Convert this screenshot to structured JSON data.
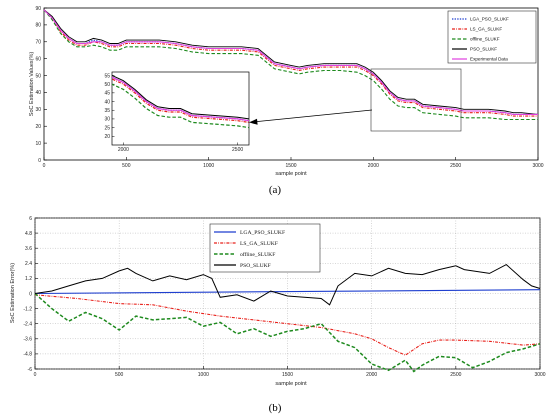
{
  "panel_labels": {
    "a": "(a)",
    "b": "(b)"
  },
  "chart_data": [
    {
      "type": "line",
      "xlabel": "sample point",
      "ylabel": "SoC Estimation Values(%)",
      "xlim": [
        0,
        3000
      ],
      "ylim": [
        0,
        90
      ],
      "xticks": [
        0,
        500,
        1000,
        1500,
        2000,
        2500,
        3000
      ],
      "yticks": [
        0,
        10,
        20,
        30,
        40,
        50,
        60,
        70,
        80,
        90
      ],
      "grid": false,
      "legend_position": "top-right",
      "x": [
        0,
        50,
        100,
        150,
        200,
        250,
        300,
        350,
        400,
        450,
        500,
        550,
        600,
        700,
        800,
        900,
        1000,
        1100,
        1200,
        1300,
        1400,
        1500,
        1550,
        1600,
        1700,
        1800,
        1900,
        1950,
        2000,
        2050,
        2100,
        2150,
        2200,
        2250,
        2300,
        2400,
        2500,
        2550,
        2600,
        2700,
        2800,
        2850,
        2900,
        3000
      ],
      "series": [
        {
          "name": "LGA_PSO_SLUKF",
          "color": "#1f3fcf",
          "dash": "1.4,1.2",
          "values": [
            89,
            84,
            77,
            72,
            69,
            69,
            71,
            70,
            68,
            68,
            70,
            70,
            70,
            70,
            69,
            67,
            66,
            66,
            66,
            65,
            57,
            55,
            54,
            55,
            56,
            56,
            56,
            54,
            51,
            46,
            40,
            36,
            35,
            35,
            32,
            31,
            30,
            29,
            29,
            29,
            28,
            27,
            27,
            27
          ]
        },
        {
          "name": "LS_GA_SLUKF",
          "color": "#e8201a",
          "dash": "3,1.2,0.8,1.2",
          "values": [
            89,
            84,
            76,
            71,
            68,
            68,
            70,
            69,
            67,
            67,
            69,
            69,
            69,
            69,
            68,
            66,
            65,
            65,
            65,
            64,
            56,
            54,
            53,
            54,
            55,
            55,
            55,
            53,
            50,
            45,
            39,
            35,
            34,
            34,
            31,
            30,
            29,
            28,
            28,
            28,
            27,
            26,
            26,
            26
          ]
        },
        {
          "name": "offline_SLUKF",
          "color": "#1e8a1e",
          "dash": "3.5,2",
          "values": [
            89,
            83,
            75,
            70,
            67,
            67,
            68,
            67,
            65,
            65,
            67,
            67,
            67,
            67,
            66,
            64,
            63,
            63,
            63,
            62,
            54,
            52,
            51,
            52,
            53,
            53,
            52,
            50,
            47,
            42,
            36,
            32,
            31,
            31,
            28,
            27,
            26,
            25,
            25,
            25,
            24,
            24,
            24,
            24
          ]
        },
        {
          "name": "PSO_SLUKF",
          "color": "#000000",
          "dash": "",
          "values": [
            89,
            85,
            78,
            73,
            70,
            70,
            72,
            71,
            69,
            69,
            71,
            71,
            71,
            71,
            70,
            68,
            67,
            67,
            67,
            66,
            58,
            56,
            55,
            56,
            57,
            57,
            57,
            55,
            52,
            47,
            41,
            37,
            36,
            36,
            33,
            32,
            31,
            30,
            30,
            30,
            29,
            28,
            28,
            27
          ]
        },
        {
          "name": "Experimental Data",
          "color": "#e040e0",
          "dash": "",
          "values": [
            89,
            84,
            77,
            72,
            69,
            69,
            70,
            70,
            68,
            68,
            70,
            70,
            70,
            70,
            69,
            67,
            66,
            66,
            66,
            65,
            57,
            55,
            54,
            55,
            56,
            56,
            56,
            54,
            51,
            46,
            40,
            36,
            35,
            35,
            32,
            31,
            30,
            29,
            29,
            29,
            28,
            27,
            27,
            27
          ]
        }
      ],
      "inset": {
        "xlim": [
          1950,
          2550
        ],
        "ylim": [
          15,
          57
        ],
        "xticks": [
          2000,
          2500
        ],
        "yticks": [
          20,
          25,
          30,
          35,
          40,
          45,
          50,
          55
        ]
      }
    },
    {
      "type": "line",
      "xlabel": "sample point",
      "ylabel": "SoC Estimation Error(%)",
      "xlim": [
        0,
        3000
      ],
      "ylim": [
        -6,
        6
      ],
      "xticks": [
        0,
        500,
        1000,
        1500,
        2000,
        2500,
        3000
      ],
      "yticks": [
        -6,
        -4.8,
        -3.6,
        -2.4,
        -1.2,
        0,
        1.2,
        2.4,
        3.6,
        4.8,
        6
      ],
      "ytick_labels": [
        "-6",
        "-4.8",
        "-3.6",
        "-2.4",
        "-1.2",
        "0",
        "1.2",
        "2.4",
        "3.6",
        "4.8",
        "6"
      ],
      "grid": true,
      "legend_position": "top-left",
      "series": [
        {
          "name": "LGA_PSO_SLUKF",
          "color": "#1f3fcf",
          "dash": "",
          "x": [
            0,
            3000
          ],
          "values": [
            0,
            0.3
          ]
        },
        {
          "name": "LS_GA_SLUKF",
          "color": "#e8201a",
          "dash": "3,1.2,0.8,1.2",
          "x": [
            0,
            250,
            500,
            700,
            900,
            1100,
            1300,
            1500,
            1700,
            1900,
            2000,
            2100,
            2200,
            2300,
            2400,
            2500,
            2700,
            2900,
            3000
          ],
          "values": [
            -0.1,
            -0.4,
            -0.8,
            -0.9,
            -1.4,
            -1.8,
            -2.1,
            -2.4,
            -2.7,
            -3.2,
            -3.6,
            -4.3,
            -4.9,
            -4.0,
            -3.7,
            -3.7,
            -3.8,
            -4.1,
            -4.0
          ]
        },
        {
          "name": "offline_SLUKF",
          "color": "#1e8a1e",
          "dash": "3.5,2",
          "x": [
            0,
            100,
            200,
            300,
            400,
            500,
            600,
            700,
            800,
            900,
            1000,
            1100,
            1200,
            1300,
            1400,
            1500,
            1600,
            1700,
            1800,
            1900,
            2000,
            2100,
            2200,
            2250,
            2300,
            2400,
            2500,
            2600,
            2700,
            2800,
            2900,
            3000
          ],
          "values": [
            0,
            -1.2,
            -2.2,
            -1.5,
            -2.0,
            -2.9,
            -1.8,
            -2.1,
            -2.0,
            -1.9,
            -2.6,
            -2.3,
            -3.2,
            -2.8,
            -3.4,
            -3.0,
            -2.8,
            -2.4,
            -3.8,
            -4.3,
            -5.6,
            -6.1,
            -5.3,
            -6.2,
            -5.7,
            -5.0,
            -5.1,
            -5.9,
            -5.4,
            -4.7,
            -4.4,
            -4.0
          ]
        },
        {
          "name": "PSO_SLUKF",
          "color": "#000000",
          "dash": "",
          "x": [
            0,
            100,
            200,
            300,
            400,
            500,
            550,
            600,
            700,
            800,
            900,
            1000,
            1050,
            1100,
            1200,
            1300,
            1400,
            1500,
            1600,
            1700,
            1750,
            1800,
            1900,
            2000,
            2100,
            2200,
            2300,
            2400,
            2500,
            2550,
            2600,
            2700,
            2800,
            2900,
            2950,
            3000
          ],
          "values": [
            0,
            0.2,
            0.6,
            1.0,
            1.2,
            1.8,
            2.0,
            1.6,
            1.0,
            1.4,
            1.1,
            1.5,
            1.2,
            -0.3,
            -0.1,
            -0.6,
            0.2,
            -0.2,
            -0.3,
            -0.4,
            -0.9,
            0.6,
            1.6,
            1.4,
            2.0,
            1.6,
            1.5,
            1.9,
            2.2,
            1.9,
            1.8,
            1.6,
            2.3,
            1.1,
            0.6,
            0.4
          ]
        }
      ]
    }
  ]
}
